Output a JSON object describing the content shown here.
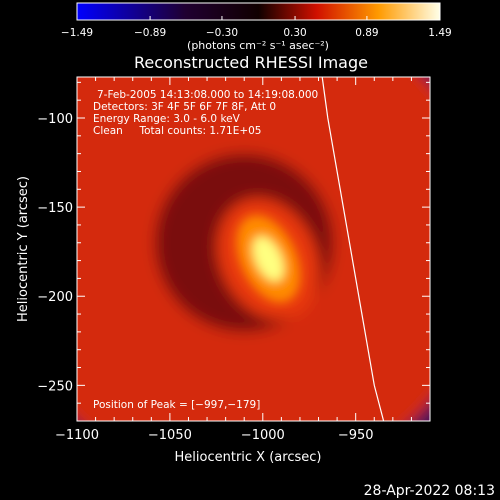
{
  "chart_data": {
    "type": "heatmap",
    "title": "Reconstructed RHESSI Image",
    "xlabel": "Heliocentric X (arcsec)",
    "ylabel": "Heliocentric Y (arcsec)",
    "xlim": [
      -1100,
      -910
    ],
    "ylim": [
      -270,
      -77
    ],
    "x_ticks": [
      -1100,
      -1050,
      -1000,
      -950
    ],
    "x_tick_labels": [
      "−1100",
      "−1050",
      "−1000",
      "−950"
    ],
    "y_ticks": [
      -100,
      -150,
      -200,
      -250
    ],
    "y_tick_labels": [
      "−100",
      "−150",
      "−200",
      "−250"
    ],
    "colorbar": {
      "min": -1.49,
      "max": 1.49,
      "ticks": [
        -1.49,
        -0.89,
        -0.3,
        0.3,
        0.89,
        1.49
      ],
      "tick_labels": [
        "−1.49",
        "−0.89",
        "−0.30",
        "0.30",
        "0.89",
        "1.49"
      ],
      "units": "(photons cm⁻² s⁻¹ asec⁻²)",
      "colormap": [
        "#0000ff",
        "#000000",
        "#ff0000",
        "#ffff00",
        "#ffffff"
      ]
    },
    "annotations": [
      "7-Feb-2005 14:13:08.000 to 14:19:08.000",
      "Detectors: 3F 4F 5F 6F 7F 8F, Att 0",
      "Energy Range: 3.0 - 6.0 keV",
      "Clean     Total counts: 1.71E+05"
    ],
    "peak_text": "Position of Peak = [−997,−179]",
    "peak": {
      "x": -997,
      "y": -179,
      "value": 1.49
    },
    "ring": {
      "center_x": -1010,
      "center_y": -170,
      "radius": 62,
      "value": 0.55
    },
    "limb_curve": {
      "x": [
        -968,
        -965,
        -960,
        -955,
        -950,
        -945,
        -940,
        -935
      ],
      "y": [
        -77,
        -100,
        -130,
        -160,
        -190,
        -220,
        -250,
        -270
      ]
    },
    "grid": false
  },
  "timestamp": "28-Apr-2022 08:13"
}
